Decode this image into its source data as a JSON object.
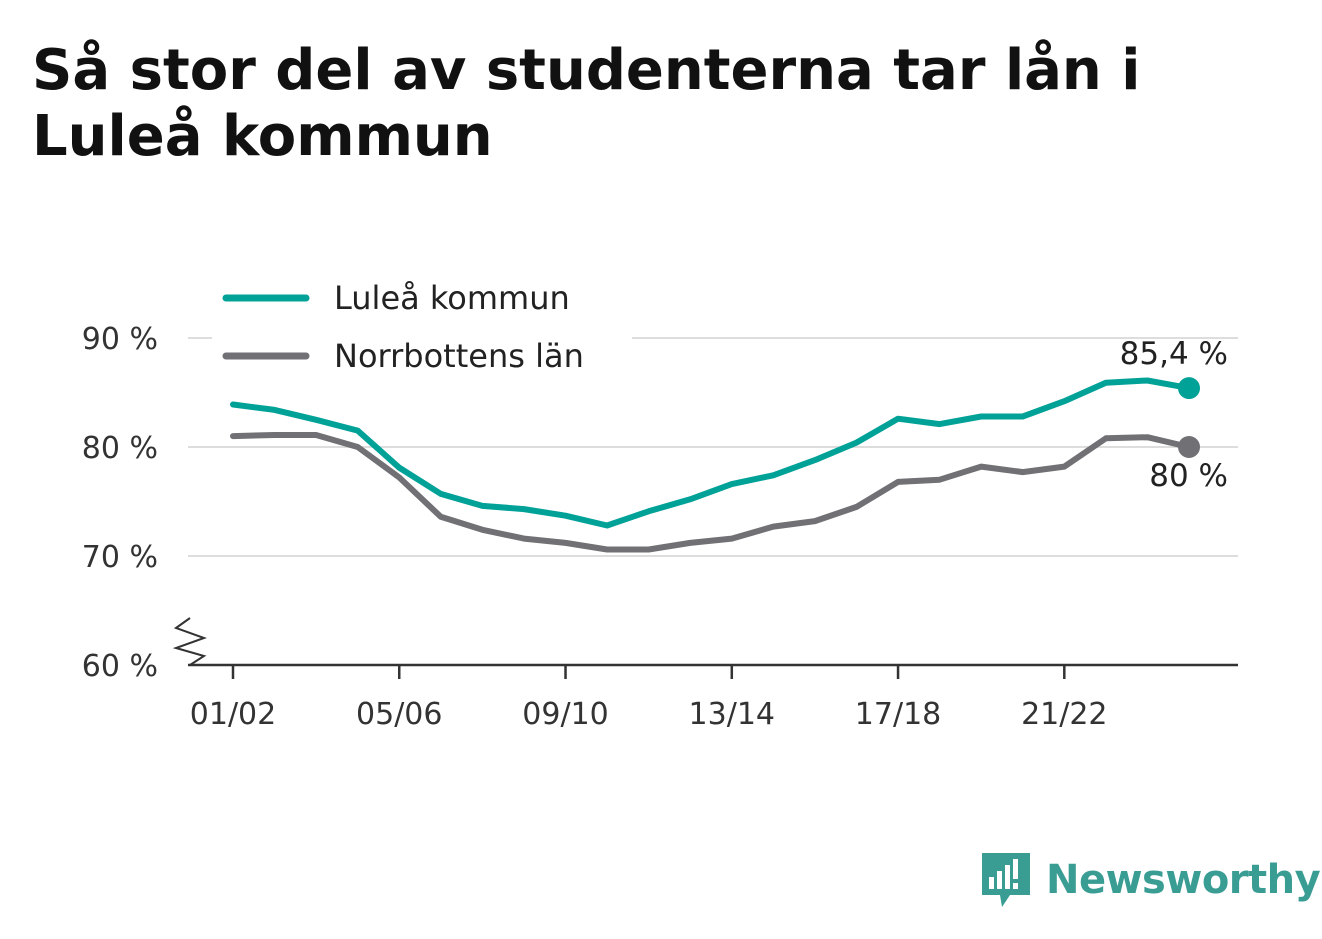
{
  "title": "Så stor del av studenterna tar lån i Luleå kommun",
  "colors": {
    "accent": "#00a298",
    "secondary": "#707075",
    "grid": "#dddddd",
    "axis": "#333333",
    "brand": "#3a9d94"
  },
  "chart_data": {
    "type": "line",
    "title": "Så stor del av studenterna tar lån i Luleå kommun",
    "xlabel": "",
    "ylabel": "",
    "ylim": [
      60,
      90
    ],
    "y_ticks": [
      60,
      70,
      80,
      90
    ],
    "y_tick_labels": [
      "60 %",
      "70 %",
      "80 %",
      "90 %"
    ],
    "y_axis_break": true,
    "grid": true,
    "legend_position": "top-left",
    "x": [
      "01/02",
      "02/03",
      "03/04",
      "04/05",
      "05/06",
      "06/07",
      "07/08",
      "08/09",
      "09/10",
      "10/11",
      "11/12",
      "12/13",
      "13/14",
      "14/15",
      "15/16",
      "16/17",
      "17/18",
      "18/19",
      "19/20",
      "20/21",
      "21/22",
      "22/23",
      "23/24",
      "24/25"
    ],
    "x_tick_labels": [
      "01/02",
      "05/06",
      "09/10",
      "13/14",
      "17/18",
      "21/22"
    ],
    "series": [
      {
        "name": "Luleå kommun",
        "color": "#00a298",
        "values": [
          83.9,
          83.4,
          82.5,
          81.5,
          78.1,
          75.7,
          74.6,
          74.3,
          73.7,
          72.8,
          74.1,
          75.2,
          76.6,
          77.4,
          78.8,
          80.4,
          82.6,
          82.1,
          82.8,
          82.8,
          84.2,
          85.9,
          86.1,
          85.4
        ],
        "end_label": "85,4 %"
      },
      {
        "name": "Norrbottens län",
        "color": "#707075",
        "values": [
          81.0,
          81.1,
          81.1,
          80.0,
          77.2,
          73.6,
          72.4,
          71.6,
          71.2,
          70.6,
          70.6,
          71.2,
          71.6,
          72.7,
          73.2,
          74.5,
          76.8,
          77.0,
          78.2,
          77.7,
          78.2,
          80.8,
          80.9,
          80.0
        ],
        "end_label": "80 %"
      }
    ]
  },
  "logo": {
    "text": "Newsworthy",
    "icon": "bar-chart-speech-bubble-icon"
  }
}
